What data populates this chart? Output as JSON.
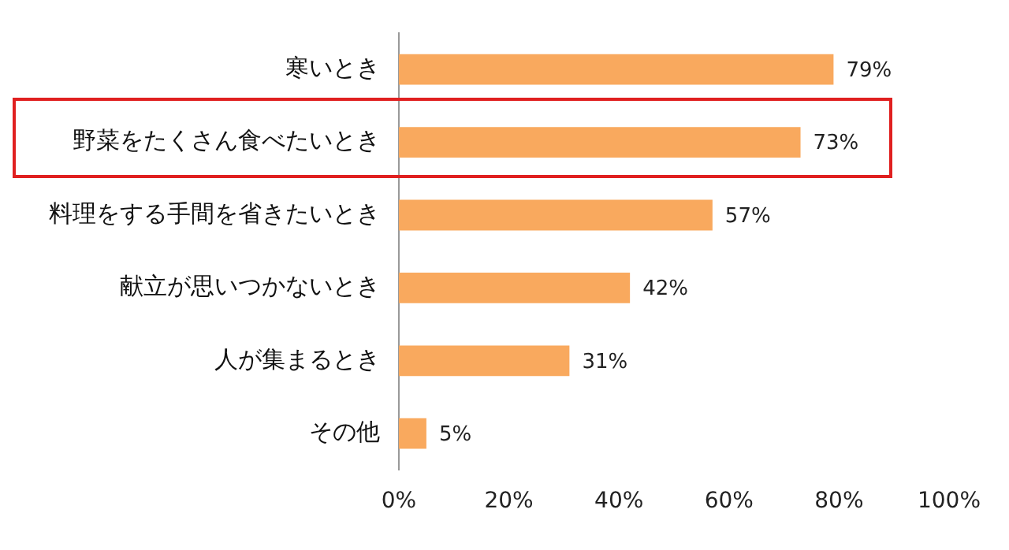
{
  "chart_data": {
    "type": "bar",
    "orientation": "horizontal",
    "categories": [
      "寒いとき",
      "野菜をたくさん食べたいとき",
      "料理をする手間を省きたいとき",
      "献立が思いつかないとき",
      "人が集まるとき",
      "その他"
    ],
    "values": [
      79,
      73,
      57,
      42,
      31,
      5
    ],
    "value_labels": [
      "79%",
      "73%",
      "57%",
      "42%",
      "31%",
      "5%"
    ],
    "color": "#f9a95e",
    "xlim": [
      0,
      100
    ],
    "xticks": [
      {
        "value": 0,
        "label": "0%"
      },
      {
        "value": 20,
        "label": "20%"
      },
      {
        "value": 40,
        "label": "40%"
      },
      {
        "value": 60,
        "label": "60%"
      },
      {
        "value": 80,
        "label": "80%"
      },
      {
        "value": 100,
        "label": "100%"
      }
    ],
    "grid": false
  }
}
